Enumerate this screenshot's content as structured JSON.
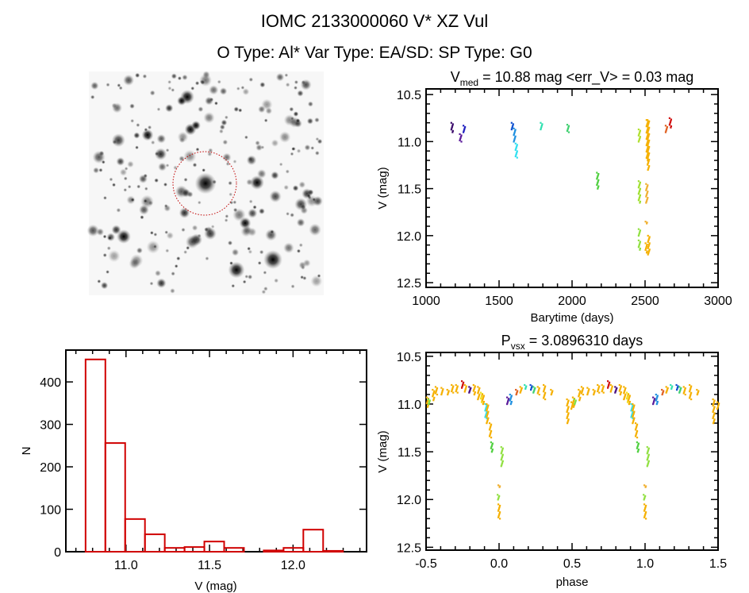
{
  "header": {
    "title": "IOMC 2133000060    V* XZ Vul",
    "subtitle": "O Type: Al*   Var Type: EA/SD:   SP Type: G0"
  },
  "colors": {
    "histogram": "#d00000",
    "axis": "#000000",
    "aperture": "#c00000"
  },
  "chart_data": [
    {
      "type": "image",
      "name": "finding-chart",
      "description_markers": [
        "target aperture circle"
      ]
    },
    {
      "type": "scatter",
      "name": "light-curve",
      "title_main": "V",
      "title_sub": "med",
      "title_rest": " = 10.88 mag <err_V> = 0.03 mag",
      "xlabel": "Barytime (days)",
      "ylabel": "V (mag)",
      "xlim": [
        1000,
        3000
      ],
      "ylim": [
        10.44,
        12.55
      ],
      "y_inverted": true,
      "xticks": [
        1000,
        1500,
        2000,
        2500,
        3000
      ],
      "xtick_labels": [
        "1000",
        "1500",
        "2000",
        "2500",
        "3000"
      ],
      "yticks": [
        10.5,
        11.0,
        11.5,
        12.0,
        12.5
      ],
      "ytick_labels": [
        "10.5",
        "11.0",
        "11.5",
        "12.0",
        "12.5"
      ],
      "groups": [
        {
          "t": 1178,
          "v": [
            10.8,
            10.9
          ],
          "color": "#3a0a6a"
        },
        {
          "t": 1236,
          "v": [
            10.92,
            11.0
          ],
          "color": "#5a1a9a"
        },
        {
          "t": 1261,
          "v": [
            10.83,
            10.9
          ],
          "color": "#2020c0"
        },
        {
          "t": 1591,
          "v": [
            10.8,
            10.87
          ],
          "color": "#1050d0"
        },
        {
          "t": 1606,
          "v": [
            10.86,
            11.0
          ],
          "color": "#2090e0"
        },
        {
          "t": 1618,
          "v": [
            11.02,
            11.17
          ],
          "color": "#30e0f0"
        },
        {
          "t": 1790,
          "v": [
            10.8,
            10.87
          ],
          "color": "#30e0b0"
        },
        {
          "t": 1972,
          "v": [
            10.82,
            10.9
          ],
          "color": "#40d070"
        },
        {
          "t": 2175,
          "v": [
            11.33,
            11.5
          ],
          "color": "#50d040"
        },
        {
          "t": 2461,
          "v": [
            10.87,
            11.0
          ],
          "color": "#b0e030"
        },
        {
          "t": 2461,
          "v": [
            11.42,
            11.65
          ],
          "color": "#a0e030"
        },
        {
          "t": 2461,
          "v": [
            11.93,
            12.0
          ],
          "color": "#90e040"
        },
        {
          "t": 2461,
          "v": [
            12.05,
            12.15
          ],
          "color": "#90e040"
        },
        {
          "t": 2515,
          "v": [
            10.77,
            11.2
          ],
          "color": "#f5b000"
        },
        {
          "t": 2522,
          "v": [
            10.77,
            11.3
          ],
          "color": "#f5b000"
        },
        {
          "t": 2512,
          "v": [
            11.45,
            11.65
          ],
          "color": "#f0b030"
        },
        {
          "t": 2508,
          "v": [
            11.85,
            11.87
          ],
          "color": "#f0b030"
        },
        {
          "t": 2508,
          "v": [
            12.08,
            12.18
          ],
          "color": "#f5b000"
        },
        {
          "t": 2525,
          "v": [
            12.0,
            12.2
          ],
          "color": "#f5b000"
        },
        {
          "t": 2646,
          "v": [
            10.83,
            10.9
          ],
          "color": "#e06020"
        },
        {
          "t": 2673,
          "v": [
            10.75,
            10.85
          ],
          "color": "#d01010"
        }
      ]
    },
    {
      "type": "bar",
      "name": "histogram",
      "xlabel": "V (mag)",
      "ylabel": "N",
      "xlim": [
        10.64,
        12.44
      ],
      "ylim": [
        0,
        475
      ],
      "xticks": [
        11.0,
        11.5,
        12.0
      ],
      "xtick_labels": [
        "11.0",
        "11.5",
        "12.0"
      ],
      "yticks": [
        0,
        100,
        200,
        300,
        400
      ],
      "ytick_labels": [
        "0",
        "100",
        "200",
        "300",
        "400"
      ],
      "bin_start": 10.758,
      "bin_width": 0.1185,
      "values": [
        453,
        256,
        77,
        41,
        9,
        11,
        24,
        9,
        0,
        3,
        9,
        52,
        2
      ]
    },
    {
      "type": "scatter",
      "name": "phased-light-curve",
      "title_main": "P",
      "title_sub": "vsx",
      "title_rest": " = 3.0896310 days",
      "xlabel": "phase",
      "ylabel": "V (mag)",
      "xlim": [
        -0.5,
        1.5
      ],
      "ylim": [
        10.46,
        12.53
      ],
      "y_inverted": true,
      "xticks": [
        -0.5,
        0.0,
        0.5,
        1.0,
        1.5
      ],
      "xtick_labels": [
        "-0.5",
        "0.0",
        "0.5",
        "1.0",
        "1.5"
      ],
      "yticks": [
        10.5,
        11.0,
        11.5,
        12.0,
        12.5
      ],
      "ytick_labels": [
        "10.5",
        "11.0",
        "11.5",
        "12.0",
        "12.5"
      ],
      "groups": [
        {
          "p": -0.49,
          "v": [
            10.93,
            11.03
          ],
          "color": "#f5b000"
        },
        {
          "p": -0.48,
          "v": [
            10.95,
            11.0
          ],
          "color": "#80e040"
        },
        {
          "p": -0.45,
          "v": [
            10.85,
            10.96
          ],
          "color": "#f5b000"
        },
        {
          "p": -0.43,
          "v": [
            10.82,
            10.9
          ],
          "color": "#f5b000"
        },
        {
          "p": -0.39,
          "v": [
            10.83,
            10.9
          ],
          "color": "#f5b000"
        },
        {
          "p": -0.35,
          "v": [
            10.85,
            10.9
          ],
          "color": "#f5b000"
        },
        {
          "p": -0.32,
          "v": [
            10.8,
            10.88
          ],
          "color": "#f5b000"
        },
        {
          "p": -0.29,
          "v": [
            10.8,
            10.88
          ],
          "color": "#f5b000"
        },
        {
          "p": -0.25,
          "v": [
            10.76,
            10.83
          ],
          "color": "#d01010"
        },
        {
          "p": -0.23,
          "v": [
            10.8,
            10.87
          ],
          "color": "#f5b000"
        },
        {
          "p": -0.2,
          "v": [
            10.82,
            10.88
          ],
          "color": "#4a1080"
        },
        {
          "p": -0.17,
          "v": [
            10.8,
            10.9
          ],
          "color": "#f5b000"
        },
        {
          "p": -0.14,
          "v": [
            10.82,
            10.95
          ],
          "color": "#f5b000"
        },
        {
          "p": -0.12,
          "v": [
            10.88,
            10.98
          ],
          "color": "#f0e020"
        },
        {
          "p": -0.11,
          "v": [
            10.9,
            11.0
          ],
          "color": "#f5b000"
        },
        {
          "p": -0.09,
          "v": [
            11.0,
            11.15
          ],
          "color": "#30e0f0"
        },
        {
          "p": -0.08,
          "v": [
            11.0,
            11.2
          ],
          "color": "#f5b000"
        },
        {
          "p": -0.06,
          "v": [
            11.2,
            11.35
          ],
          "color": "#f5b000"
        },
        {
          "p": -0.05,
          "v": [
            11.4,
            11.5
          ],
          "color": "#50d040"
        },
        {
          "p": -0.005,
          "v": [
            11.95,
            12.0
          ],
          "color": "#90e040"
        },
        {
          "p": 0.0,
          "v": [
            12.05,
            12.2
          ],
          "color": "#f5b000"
        },
        {
          "p": 0.0,
          "v": [
            11.85,
            11.87
          ],
          "color": "#f0b030"
        },
        {
          "p": 0.02,
          "v": [
            11.45,
            11.65
          ],
          "color": "#90e040"
        },
        {
          "p": 0.06,
          "v": [
            10.93,
            11.0
          ],
          "color": "#5a1a9a"
        },
        {
          "p": 0.08,
          "v": [
            10.9,
            11.0
          ],
          "color": "#2090e0"
        },
        {
          "p": 0.12,
          "v": [
            10.85,
            10.9
          ],
          "color": "#e06020"
        },
        {
          "p": 0.15,
          "v": [
            10.82,
            10.88
          ],
          "color": "#f5b000"
        },
        {
          "p": 0.18,
          "v": [
            10.8,
            10.84
          ],
          "color": "#30e0b0"
        },
        {
          "p": 0.22,
          "v": [
            10.8,
            10.85
          ],
          "color": "#1050d0"
        },
        {
          "p": 0.24,
          "v": [
            10.82,
            10.88
          ],
          "color": "#40d070"
        },
        {
          "p": 0.27,
          "v": [
            10.82,
            10.9
          ],
          "color": "#f5b000"
        },
        {
          "p": 0.31,
          "v": [
            10.8,
            10.95
          ],
          "color": "#f5b000"
        },
        {
          "p": 0.36,
          "v": [
            10.85,
            10.9
          ],
          "color": "#f5b000"
        },
        {
          "p": 0.47,
          "v": [
            10.95,
            11.2
          ],
          "color": "#f5b000"
        },
        {
          "p": 0.5,
          "v": [
            10.98,
            11.05
          ],
          "color": "#f5b000"
        }
      ]
    }
  ]
}
